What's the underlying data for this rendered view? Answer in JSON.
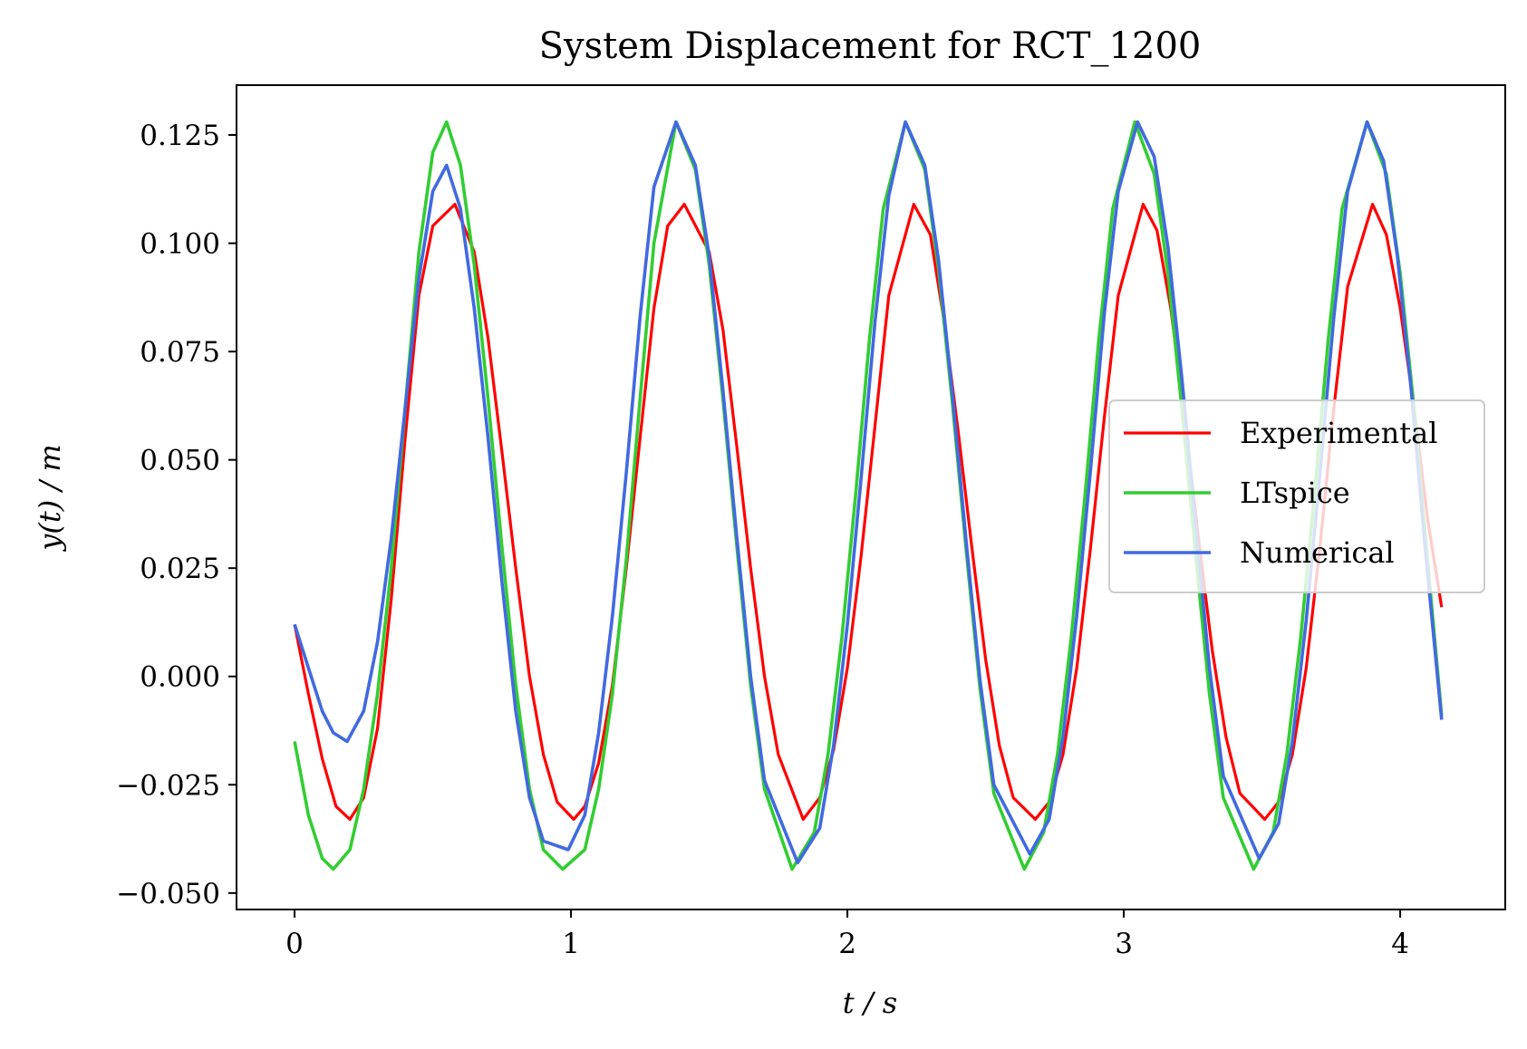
{
  "chart_data": {
    "type": "line",
    "title": "System Displacement for RCT_1200",
    "xlabel": "t / s",
    "ylabel": "y(t) / m",
    "xlim": [
      -0.21,
      4.38
    ],
    "ylim": [
      -0.0538,
      0.1365
    ],
    "x_ticks": [
      0,
      1,
      2,
      3,
      4
    ],
    "x_tick_labels": [
      "0",
      "1",
      "2",
      "3",
      "4"
    ],
    "y_ticks": [
      -0.05,
      -0.025,
      0.0,
      0.025,
      0.05,
      0.075,
      0.1,
      0.125
    ],
    "y_tick_labels": [
      "−0.050",
      "−0.025",
      "0.000",
      "0.025",
      "0.050",
      "0.075",
      "0.100",
      "0.125"
    ],
    "grid": false,
    "legend_position": "center-right",
    "series": [
      {
        "name": "Experimental",
        "color": "#ff0000",
        "line_width": 3.2,
        "x": [
          0.0,
          0.05,
          0.1,
          0.15,
          0.2,
          0.25,
          0.3,
          0.35,
          0.4,
          0.45,
          0.5,
          0.58,
          0.65,
          0.7,
          0.75,
          0.8,
          0.85,
          0.9,
          0.95,
          1.01,
          1.05,
          1.1,
          1.15,
          1.2,
          1.25,
          1.3,
          1.35,
          1.41,
          1.5,
          1.55,
          1.6,
          1.65,
          1.7,
          1.75,
          1.84,
          1.9,
          1.95,
          2.0,
          2.05,
          2.1,
          2.15,
          2.24,
          2.3,
          2.35,
          2.4,
          2.45,
          2.5,
          2.55,
          2.6,
          2.68,
          2.73,
          2.78,
          2.83,
          2.88,
          2.93,
          2.98,
          3.07,
          3.12,
          3.17,
          3.22,
          3.27,
          3.32,
          3.37,
          3.42,
          3.51,
          3.56,
          3.61,
          3.66,
          3.71,
          3.76,
          3.81,
          3.9,
          3.95,
          4.0,
          4.05,
          4.1,
          4.15
        ],
        "values": [
          0.012,
          -0.004,
          -0.019,
          -0.03,
          -0.033,
          -0.028,
          -0.012,
          0.018,
          0.055,
          0.088,
          0.104,
          0.109,
          0.098,
          0.078,
          0.052,
          0.025,
          0.0,
          -0.018,
          -0.029,
          -0.033,
          -0.03,
          -0.02,
          -0.002,
          0.025,
          0.055,
          0.085,
          0.104,
          0.109,
          0.098,
          0.08,
          0.053,
          0.025,
          0.0,
          -0.018,
          -0.033,
          -0.028,
          -0.017,
          0.002,
          0.028,
          0.058,
          0.088,
          0.109,
          0.102,
          0.082,
          0.057,
          0.03,
          0.004,
          -0.016,
          -0.028,
          -0.033,
          -0.029,
          -0.018,
          0.002,
          0.03,
          0.06,
          0.088,
          0.109,
          0.103,
          0.085,
          0.06,
          0.032,
          0.006,
          -0.014,
          -0.027,
          -0.033,
          -0.029,
          -0.018,
          0.002,
          0.03,
          0.062,
          0.09,
          0.109,
          0.102,
          0.085,
          0.062,
          0.036,
          0.016
        ]
      },
      {
        "name": "LTspice",
        "color": "#32cd32",
        "line_width": 3.6,
        "x": [
          0.0,
          0.05,
          0.1,
          0.14,
          0.2,
          0.25,
          0.3,
          0.35,
          0.4,
          0.45,
          0.5,
          0.55,
          0.6,
          0.65,
          0.7,
          0.75,
          0.8,
          0.85,
          0.9,
          0.97,
          1.05,
          1.1,
          1.15,
          1.2,
          1.25,
          1.3,
          1.38,
          1.45,
          1.5,
          1.55,
          1.6,
          1.65,
          1.7,
          1.8,
          1.88,
          1.93,
          1.98,
          2.03,
          2.08,
          2.13,
          2.21,
          2.28,
          2.33,
          2.38,
          2.43,
          2.48,
          2.53,
          2.64,
          2.71,
          2.76,
          2.81,
          2.86,
          2.91,
          2.96,
          3.04,
          3.11,
          3.16,
          3.21,
          3.26,
          3.31,
          3.36,
          3.47,
          3.54,
          3.59,
          3.64,
          3.69,
          3.74,
          3.79,
          3.88,
          3.95,
          4.0,
          4.05,
          4.1,
          4.15
        ],
        "values": [
          -0.015,
          -0.032,
          -0.042,
          -0.0445,
          -0.04,
          -0.026,
          -0.004,
          0.025,
          0.062,
          0.098,
          0.121,
          0.128,
          0.118,
          0.095,
          0.064,
          0.03,
          -0.002,
          -0.026,
          -0.04,
          -0.0445,
          -0.04,
          -0.026,
          -0.004,
          0.027,
          0.064,
          0.1,
          0.128,
          0.117,
          0.095,
          0.064,
          0.03,
          -0.002,
          -0.026,
          -0.0445,
          -0.036,
          -0.018,
          0.009,
          0.042,
          0.078,
          0.108,
          0.128,
          0.117,
          0.094,
          0.063,
          0.029,
          -0.003,
          -0.027,
          -0.0445,
          -0.036,
          -0.018,
          0.009,
          0.042,
          0.078,
          0.108,
          0.128,
          0.116,
          0.093,
          0.062,
          0.028,
          -0.004,
          -0.028,
          -0.0445,
          -0.036,
          -0.018,
          0.009,
          0.042,
          0.078,
          0.108,
          0.128,
          0.116,
          0.093,
          0.062,
          0.026,
          -0.009
        ]
      },
      {
        "name": "Numerical",
        "color": "#4169e1",
        "line_width": 3.6,
        "x": [
          0.0,
          0.05,
          0.1,
          0.14,
          0.19,
          0.25,
          0.3,
          0.35,
          0.4,
          0.45,
          0.5,
          0.55,
          0.6,
          0.65,
          0.7,
          0.75,
          0.8,
          0.85,
          0.9,
          0.99,
          1.05,
          1.1,
          1.15,
          1.2,
          1.25,
          1.3,
          1.38,
          1.45,
          1.5,
          1.55,
          1.6,
          1.65,
          1.7,
          1.82,
          1.9,
          1.95,
          2.0,
          2.05,
          2.1,
          2.15,
          2.21,
          2.28,
          2.33,
          2.38,
          2.43,
          2.48,
          2.53,
          2.66,
          2.73,
          2.78,
          2.83,
          2.88,
          2.93,
          2.98,
          3.05,
          3.11,
          3.16,
          3.21,
          3.26,
          3.31,
          3.36,
          3.49,
          3.56,
          3.61,
          3.66,
          3.71,
          3.76,
          3.81,
          3.88,
          3.94,
          3.99,
          4.04,
          4.09,
          4.15
        ],
        "values": [
          0.012,
          0.002,
          -0.008,
          -0.013,
          -0.015,
          -0.008,
          0.008,
          0.032,
          0.062,
          0.092,
          0.112,
          0.118,
          0.108,
          0.085,
          0.055,
          0.022,
          -0.008,
          -0.028,
          -0.038,
          -0.04,
          -0.032,
          -0.013,
          0.014,
          0.047,
          0.083,
          0.113,
          0.128,
          0.118,
          0.097,
          0.066,
          0.032,
          0.0,
          -0.024,
          -0.043,
          -0.035,
          -0.016,
          0.012,
          0.046,
          0.082,
          0.111,
          0.128,
          0.118,
          0.096,
          0.065,
          0.031,
          -0.001,
          -0.025,
          -0.041,
          -0.033,
          -0.014,
          0.014,
          0.048,
          0.084,
          0.112,
          0.128,
          0.12,
          0.099,
          0.069,
          0.035,
          0.002,
          -0.023,
          -0.042,
          -0.034,
          -0.015,
          0.013,
          0.047,
          0.083,
          0.112,
          0.128,
          0.119,
          0.097,
          0.066,
          0.03,
          -0.01
        ]
      }
    ]
  }
}
